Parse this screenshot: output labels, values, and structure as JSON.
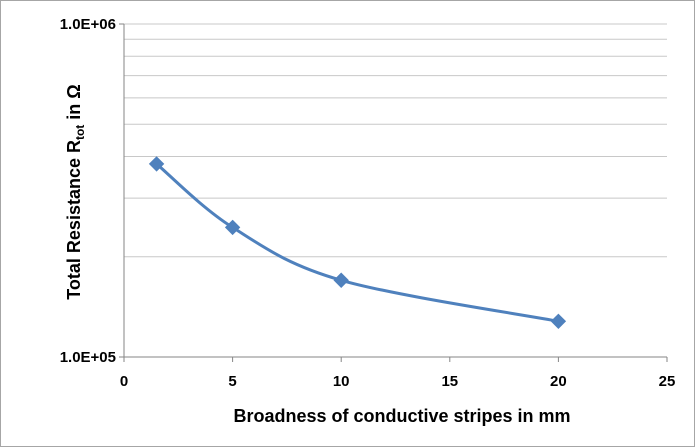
{
  "chart_data": {
    "type": "line",
    "xlabel": "Broadness of conductive stripes in mm",
    "ylabel": {
      "prefix": "Total Resistance R",
      "subscript": "tot",
      "suffix": " in Ω"
    },
    "xlim": [
      0,
      25
    ],
    "ylim": [
      100000,
      1000000
    ],
    "yscale": "log",
    "x_ticks": [
      "0",
      "5",
      "10",
      "15",
      "20",
      "25"
    ],
    "y_ticks": [
      "1.0E+05",
      "1.0E+06"
    ],
    "grid": "horizontal",
    "legend": "none",
    "line_color": "#4f81bd",
    "marker": "diamond",
    "smooth": true,
    "series": [
      {
        "x": [
          1.5,
          5,
          10,
          20
        ],
        "values": [
          380000,
          245000,
          170000,
          128000
        ]
      }
    ]
  }
}
